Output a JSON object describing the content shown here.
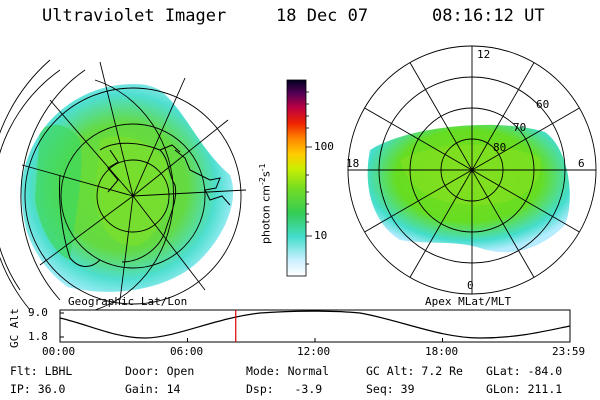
{
  "header": {
    "instrument": "Ultraviolet Imager",
    "date": "18 Dec 07",
    "time": "08:16:12 UT"
  },
  "left_map": {
    "caption": "Geographic Lat/Lon"
  },
  "right_map": {
    "caption": "Apex MLat/MLT",
    "mlt_labels": {
      "top": "12",
      "bottom": "0",
      "left": "18",
      "right": "6"
    },
    "lat_labels": [
      "60",
      "70",
      "80"
    ]
  },
  "colorbar": {
    "unit": "photon cm",
    "unit_sup1": "-2",
    "unit_mid": "s",
    "unit_sup2": "-1",
    "tick_100": "100",
    "tick_10": "10"
  },
  "altitude_plot": {
    "ylabel": "GC Alt",
    "yticks": [
      "9.0",
      "1.8"
    ],
    "xticks": [
      "00:00",
      "06:00",
      "12:00",
      "18:00",
      "23:59"
    ],
    "current_marker_hour": 8.27
  },
  "status": {
    "row1": [
      {
        "label": "Flt:",
        "value": "LBHL"
      },
      {
        "label": "Door:",
        "value": "Open"
      },
      {
        "label": "Mode:",
        "value": "Normal"
      },
      {
        "label": "GC Alt:",
        "value": "7.2 Re"
      },
      {
        "label": "GLat:",
        "value": "-84.0"
      }
    ],
    "row2": [
      {
        "label": "IP:",
        "value": "36.0"
      },
      {
        "label": "Gain:",
        "value": "14"
      },
      {
        "label": "Dsp:",
        "value": "-3.9"
      },
      {
        "label": "Seq:",
        "value": "39"
      },
      {
        "label": "GLon:",
        "value": "211.1"
      }
    ]
  },
  "colors": {
    "aurora_green": "#66dd22",
    "aurora_cyan": "#44ddcc",
    "aurora_light": "#aaeeff",
    "marker_red": "#dd0000"
  }
}
